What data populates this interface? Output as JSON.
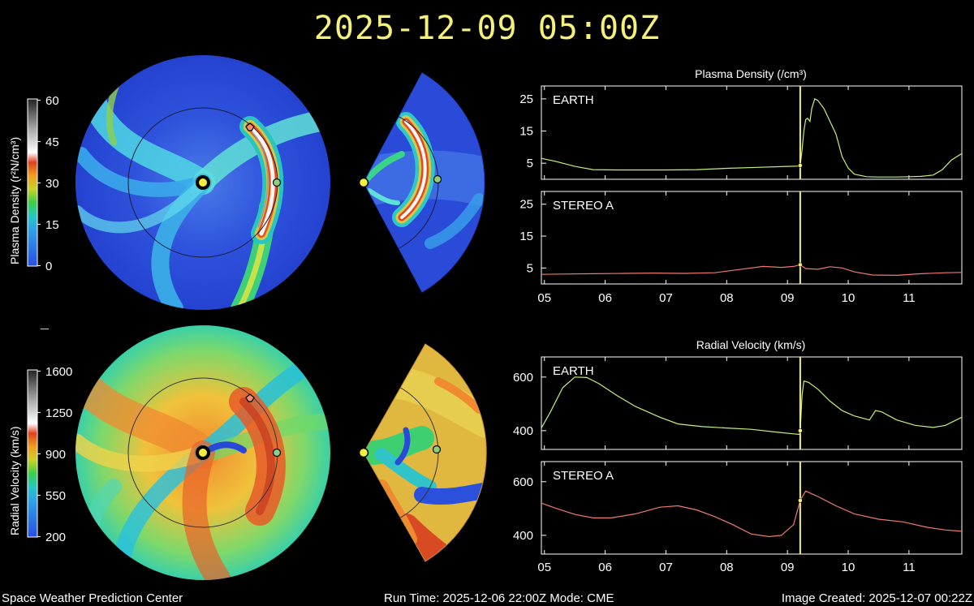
{
  "header": {
    "timestamp": "2025-12-09  05:00Z"
  },
  "footer": {
    "org": "Space Weather Prediction Center",
    "run_info": "Run Time: 2025-12-06 22:00Z  Mode: CME",
    "image_created": "Image Created: 2025-12-07 00:22Z"
  },
  "colorbars": {
    "density": {
      "label": "Plasma Density (r²N/cm³)",
      "ticks": [
        "60",
        "45",
        "30",
        "15",
        "0"
      ]
    },
    "velocity": {
      "label": "Radial Velocity (km/s)",
      "ticks": [
        "1600",
        "1250",
        "900",
        "550",
        "200"
      ]
    }
  },
  "colors": {
    "title": "#f4f07a",
    "earth_series": "#c6f07c",
    "stereo_series": "#f07a70",
    "current_time_marker": "#f4f07a"
  },
  "chart_data": [
    {
      "type": "line",
      "title": "Plasma Density (/cm³)",
      "x_tick_labels": [
        "05",
        "06",
        "07",
        "08",
        "09",
        "10",
        "11"
      ],
      "xlim": [
        4.95,
        11.87
      ],
      "current_time": 9.21,
      "panels": [
        {
          "name": "EARTH",
          "ylim": [
            0,
            29
          ],
          "y_ticks": [
            5,
            15,
            25
          ],
          "color": "#c6f07c",
          "x": [
            4.95,
            5.2,
            5.5,
            5.8,
            6.2,
            6.6,
            7.0,
            7.5,
            8.0,
            8.5,
            9.0,
            9.2,
            9.21,
            9.24,
            9.27,
            9.3,
            9.33,
            9.37,
            9.4,
            9.45,
            9.5,
            9.6,
            9.7,
            9.8,
            9.9,
            10.0,
            10.1,
            10.3,
            10.5,
            10.8,
            11.0,
            11.2,
            11.4,
            11.55,
            11.7,
            11.87
          ],
          "y": [
            6.5,
            5.5,
            4.0,
            3.0,
            2.9,
            2.9,
            2.9,
            3.0,
            3.4,
            3.7,
            4.0,
            4.1,
            4.3,
            9,
            15,
            18.5,
            19,
            18.0,
            22,
            25,
            24.5,
            22,
            18,
            14,
            7,
            3.5,
            1.6,
            0.8,
            0.7,
            0.7,
            0.8,
            0.9,
            1.3,
            3.0,
            6.0,
            8.0
          ]
        },
        {
          "name": "STEREO A",
          "ylim": [
            0,
            29
          ],
          "y_ticks": [
            5,
            15,
            25
          ],
          "color": "#f07a70",
          "x": [
            4.95,
            5.3,
            5.8,
            6.3,
            6.8,
            7.3,
            7.8,
            8.2,
            8.6,
            8.9,
            9.1,
            9.21,
            9.3,
            9.5,
            9.7,
            9.9,
            10.1,
            10.4,
            10.8,
            11.2,
            11.6,
            11.87
          ],
          "y": [
            3.0,
            3.1,
            3.2,
            3.3,
            3.4,
            3.3,
            3.5,
            4.5,
            5.5,
            5.2,
            5.5,
            6.0,
            4.8,
            4.6,
            5.4,
            5.0,
            3.8,
            2.8,
            2.7,
            3.2,
            3.5,
            3.6
          ]
        }
      ]
    },
    {
      "type": "line",
      "title": "Radial Velocity (km/s)",
      "x_tick_labels": [
        "05",
        "06",
        "07",
        "08",
        "09",
        "10",
        "11"
      ],
      "xlim": [
        4.95,
        11.87
      ],
      "current_time": 9.21,
      "panels": [
        {
          "name": "EARTH",
          "ylim": [
            330,
            675
          ],
          "y_ticks": [
            400,
            600
          ],
          "color": "#c6f07c",
          "x": [
            4.95,
            5.1,
            5.3,
            5.5,
            5.7,
            5.9,
            6.2,
            6.5,
            6.9,
            7.2,
            7.6,
            8.0,
            8.4,
            8.8,
            9.1,
            9.2,
            9.21,
            9.24,
            9.27,
            9.35,
            9.5,
            9.7,
            9.9,
            10.1,
            10.35,
            10.45,
            10.55,
            10.8,
            11.1,
            11.4,
            11.6,
            11.87
          ],
          "y": [
            410,
            470,
            560,
            600,
            598,
            575,
            530,
            490,
            450,
            425,
            415,
            410,
            405,
            395,
            388,
            386,
            400,
            530,
            585,
            580,
            555,
            510,
            475,
            455,
            440,
            475,
            470,
            440,
            420,
            412,
            420,
            450
          ]
        },
        {
          "name": "STEREO A",
          "ylim": [
            330,
            675
          ],
          "y_ticks": [
            400,
            600
          ],
          "color": "#f07a70",
          "x": [
            4.95,
            5.2,
            5.5,
            5.8,
            6.1,
            6.5,
            6.9,
            7.2,
            7.5,
            7.8,
            8.1,
            8.4,
            8.7,
            8.9,
            9.1,
            9.21,
            9.3,
            9.5,
            9.8,
            10.1,
            10.5,
            10.9,
            11.3,
            11.6,
            11.87
          ],
          "y": [
            520,
            500,
            478,
            465,
            465,
            480,
            505,
            510,
            495,
            470,
            440,
            405,
            395,
            400,
            440,
            530,
            565,
            545,
            510,
            480,
            460,
            450,
            430,
            420,
            415
          ]
        }
      ]
    }
  ]
}
